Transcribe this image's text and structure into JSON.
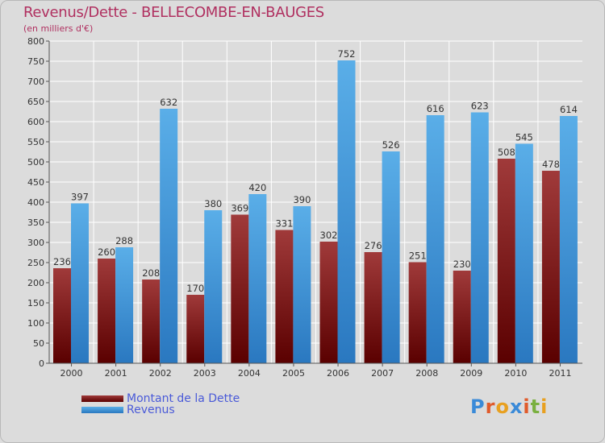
{
  "header": {
    "title": "Revenus/Dette - BELLECOMBE-EN-BAUGES",
    "subtitle": "(en milliers d'€)"
  },
  "chart_data": {
    "type": "bar",
    "categories": [
      "2000",
      "2001",
      "2002",
      "2003",
      "2004",
      "2005",
      "2006",
      "2007",
      "2008",
      "2009",
      "2010",
      "2011"
    ],
    "series": [
      {
        "name": "Montant de la Dette",
        "color": "#7a1a1a",
        "values": [
          236,
          260,
          208,
          170,
          369,
          331,
          302,
          276,
          251,
          230,
          508,
          478
        ]
      },
      {
        "name": "Revenus",
        "color": "#4a9ee0",
        "values": [
          397,
          288,
          632,
          380,
          420,
          390,
          752,
          526,
          616,
          623,
          545,
          614
        ]
      }
    ],
    "ylim": [
      0,
      800
    ],
    "yticks": [
      0,
      50,
      100,
      150,
      200,
      250,
      300,
      350,
      400,
      450,
      500,
      550,
      600,
      650,
      700,
      750,
      800
    ],
    "grid": true,
    "legend_position": "bottom-left"
  },
  "logo": {
    "letters": [
      "P",
      "r",
      "o",
      "x",
      "i",
      "t",
      "i"
    ],
    "colors": [
      "#3a8ad8",
      "#e05a2a",
      "#e8a020",
      "#3a8ad8",
      "#e05a2a",
      "#7ab040",
      "#e8a020"
    ]
  }
}
